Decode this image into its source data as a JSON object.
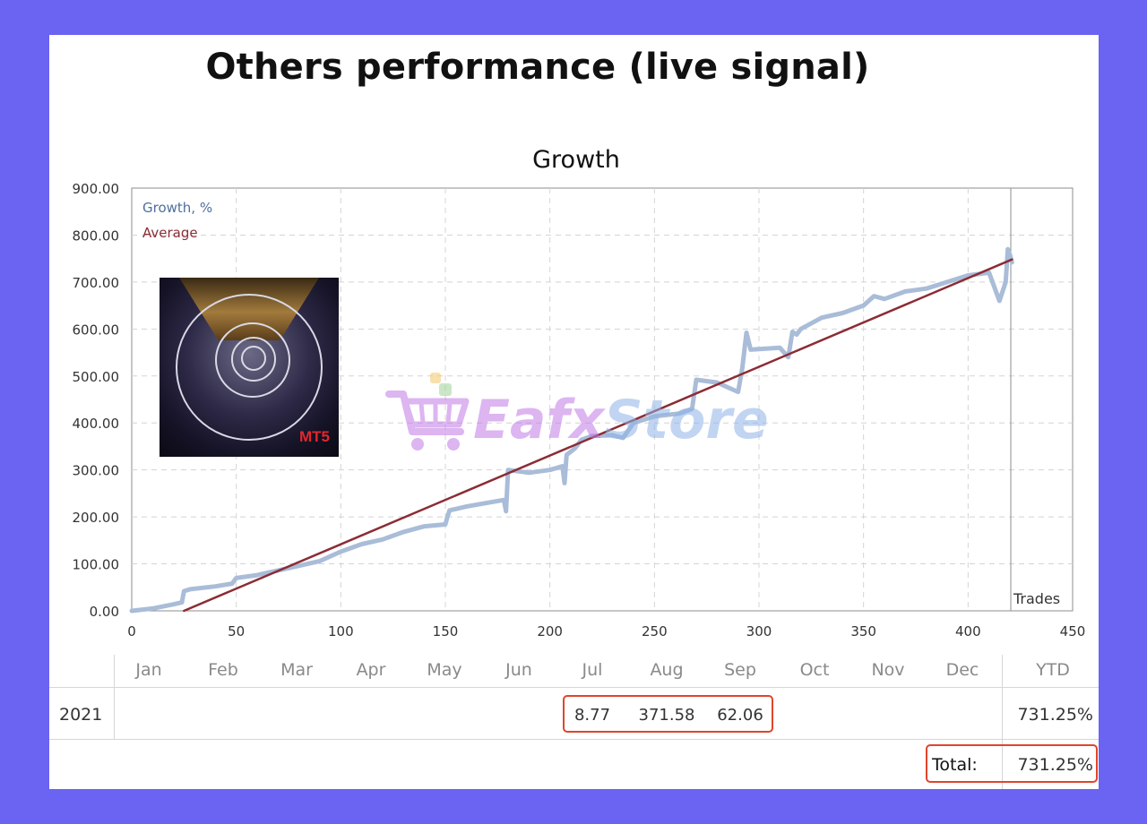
{
  "header": {
    "title": "Others performance (live signal)"
  },
  "colors": {
    "growth": "#a9bcd8",
    "average": "#8b2c35",
    "accent": "#e0452a",
    "frame": "#6b63f2"
  },
  "thumbnail": {
    "badge": "MT5"
  },
  "watermark": {
    "part1": "Eafx",
    "part2": "Store"
  },
  "chart_data": {
    "type": "line",
    "title": "Growth",
    "xlabel": "",
    "ylabel": "",
    "xlim": [
      0,
      450
    ],
    "ylim": [
      0,
      900
    ],
    "x_ticks": [
      0,
      50,
      100,
      150,
      200,
      250,
      300,
      350,
      400,
      450
    ],
    "y_ticks": [
      "0.00",
      "100.00",
      "200.00",
      "300.00",
      "400.00",
      "500.00",
      "600.00",
      "700.00",
      "800.00",
      "900.00"
    ],
    "grid": true,
    "legend_position": "top-left",
    "trades_label": "Trades",
    "series": [
      {
        "name": "Growth, %",
        "color": "#a9bcd8",
        "points": [
          [
            0,
            0
          ],
          [
            10,
            5
          ],
          [
            20,
            14
          ],
          [
            24,
            18
          ],
          [
            25,
            42
          ],
          [
            28,
            46
          ],
          [
            40,
            52
          ],
          [
            48,
            58
          ],
          [
            50,
            70
          ],
          [
            60,
            76
          ],
          [
            70,
            86
          ],
          [
            80,
            96
          ],
          [
            90,
            106
          ],
          [
            100,
            126
          ],
          [
            110,
            142
          ],
          [
            120,
            152
          ],
          [
            130,
            168
          ],
          [
            140,
            180
          ],
          [
            150,
            184
          ],
          [
            151,
            200
          ],
          [
            152,
            214
          ],
          [
            160,
            222
          ],
          [
            170,
            230
          ],
          [
            178,
            236
          ],
          [
            179,
            212
          ],
          [
            180,
            300
          ],
          [
            190,
            294
          ],
          [
            200,
            300
          ],
          [
            206,
            308
          ],
          [
            207,
            272
          ],
          [
            208,
            332
          ],
          [
            212,
            346
          ],
          [
            215,
            364
          ],
          [
            220,
            372
          ],
          [
            230,
            374
          ],
          [
            235,
            368
          ],
          [
            240,
            400
          ],
          [
            250,
            414
          ],
          [
            262,
            420
          ],
          [
            268,
            430
          ],
          [
            270,
            492
          ],
          [
            280,
            486
          ],
          [
            290,
            466
          ],
          [
            292,
            516
          ],
          [
            294,
            592
          ],
          [
            296,
            556
          ],
          [
            310,
            560
          ],
          [
            314,
            540
          ],
          [
            316,
            594
          ],
          [
            318,
            588
          ],
          [
            320,
            600
          ],
          [
            330,
            624
          ],
          [
            340,
            634
          ],
          [
            350,
            650
          ],
          [
            355,
            670
          ],
          [
            360,
            664
          ],
          [
            370,
            680
          ],
          [
            380,
            686
          ],
          [
            390,
            700
          ],
          [
            400,
            714
          ],
          [
            410,
            720
          ],
          [
            415,
            660
          ],
          [
            418,
            700
          ],
          [
            419,
            770
          ],
          [
            420,
            758
          ],
          [
            421,
            742
          ]
        ]
      },
      {
        "name": "Average",
        "color": "#8b2c35",
        "points": [
          [
            25,
            0
          ],
          [
            421,
            748
          ]
        ]
      }
    ]
  },
  "table": {
    "months": [
      "Jan",
      "Feb",
      "Mar",
      "Apr",
      "May",
      "Jun",
      "Jul",
      "Aug",
      "Sep",
      "Oct",
      "Nov",
      "Dec"
    ],
    "ytd_header": "YTD",
    "rows": [
      {
        "year": "2021",
        "values": {
          "Jul": "8.77",
          "Aug": "371.58",
          "Sep": "62.06"
        },
        "ytd": "731.25%"
      }
    ],
    "total_label": "Total:",
    "total_value": "731.25%"
  }
}
